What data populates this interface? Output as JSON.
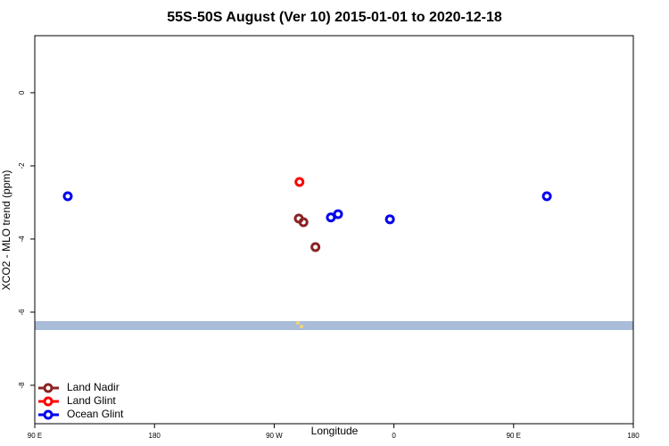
{
  "chart_data": {
    "type": "scatter",
    "title": "55S-50S August (Ver 10)   2015-01-01 to 2020-12-18",
    "x_label": "Longitude",
    "y_label": "XCO2 - MLO trend (ppm)",
    "xlim": [
      90,
      540
    ],
    "ylim": [
      -9.05,
      1.56
    ],
    "xticks": [
      {
        "value": 90,
        "label": "90 E"
      },
      {
        "value": 180,
        "label": "180"
      },
      {
        "value": 270,
        "label": "90 W"
      },
      {
        "value": 360,
        "label": "0"
      },
      {
        "value": 450,
        "label": "90 E"
      },
      {
        "value": 540,
        "label": "180"
      }
    ],
    "yticks": [
      -8,
      -6,
      -4,
      -2,
      0
    ],
    "legend": "bottom-left",
    "series": [
      {
        "name": "Land Nadir",
        "color": "#8b2323",
        "x": [
          288.5,
          292,
          301
        ],
        "values": [
          -3.44,
          -3.54,
          -4.22
        ]
      },
      {
        "name": "Land Glint",
        "color": "#ff0000",
        "x": [
          289
        ],
        "values": [
          -2.44
        ]
      },
      {
        "name": "Ocean Glint",
        "color": "#0000ee",
        "x": [
          114.8,
          312.6,
          318,
          357,
          475
        ],
        "values": [
          -2.83,
          -3.41,
          -3.32,
          -3.46,
          -2.83
        ]
      }
    ]
  }
}
